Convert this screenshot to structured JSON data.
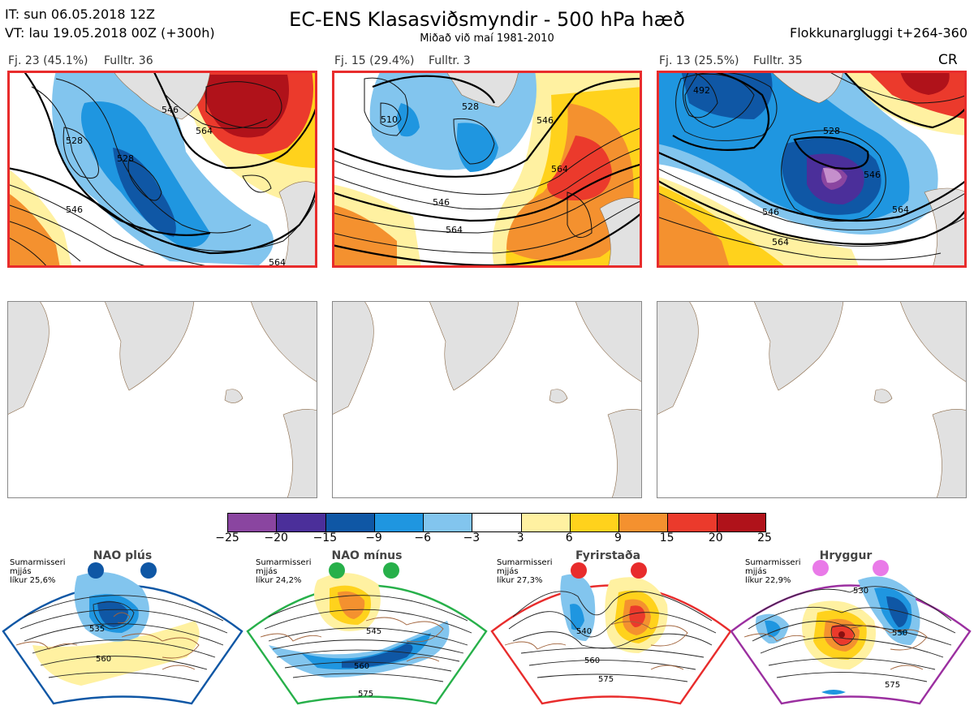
{
  "header": {
    "init_time": "IT: sun 06.05.2018 12Z",
    "valid_time": "VT: lau 19.05.2018 00Z  (+300h)",
    "title": "EC-ENS Klasasviðsmyndir - 500 hPa hæð",
    "subtitle": "Miðað við maí 1981-2010",
    "window": "Flokkunargluggi t+264-360"
  },
  "clusters": [
    {
      "fj": "Fj. 23 (45.1%)",
      "fulltr": "Fulltr. 36",
      "tag": "",
      "contours": [
        "528",
        "528",
        "546",
        "546",
        "564",
        "564"
      ]
    },
    {
      "fj": "Fj. 15 (29.4%)",
      "fulltr": "Fulltr. 3",
      "tag": "",
      "contours": [
        "510",
        "528",
        "546",
        "546",
        "564",
        "564"
      ]
    },
    {
      "fj": "Fj. 13 (25.5%)",
      "fulltr": "Fulltr. 35",
      "tag": "CR",
      "contours": [
        "492",
        "528",
        "546",
        "546",
        "564",
        "564"
      ]
    }
  ],
  "colorbar": {
    "ticks": [
      "−25",
      "−20",
      "−15",
      "−9",
      "−6",
      "−3",
      "3",
      "6",
      "9",
      "15",
      "20",
      "25"
    ],
    "colors": [
      "#8a45a0",
      "#4b2f9a",
      "#0f57a5",
      "#1f96e0",
      "#82c5ee",
      "#ffffff",
      "#fff1a1",
      "#ffd21c",
      "#f4912f",
      "#eb3a2c",
      "#b0121a"
    ]
  },
  "regimes": [
    {
      "name": "NAO plús",
      "season": "Sumarmisseri",
      "label": "mjjás",
      "prob": "líkur 25,6%",
      "color": "#0f57a5",
      "contours": [
        "535",
        "560"
      ]
    },
    {
      "name": "NAO mínus",
      "season": "Sumarmisseri",
      "label": "mjjás",
      "prob": "líkur 24,2%",
      "color": "#27b04a",
      "contours": [
        "545",
        "560",
        "575"
      ]
    },
    {
      "name": "Fyrirstaða",
      "season": "Sumarmisseri",
      "label": "mjjás",
      "prob": "líkur 27,3%",
      "color": "#e82c2c",
      "contours": [
        "540",
        "560",
        "575"
      ]
    },
    {
      "name": "Hryggur",
      "season": "Sumarmisseri",
      "label": "mjjás",
      "prob": "líkur 22,9%",
      "color": "#e97ae8",
      "contours": [
        "530",
        "550",
        "575"
      ]
    }
  ]
}
